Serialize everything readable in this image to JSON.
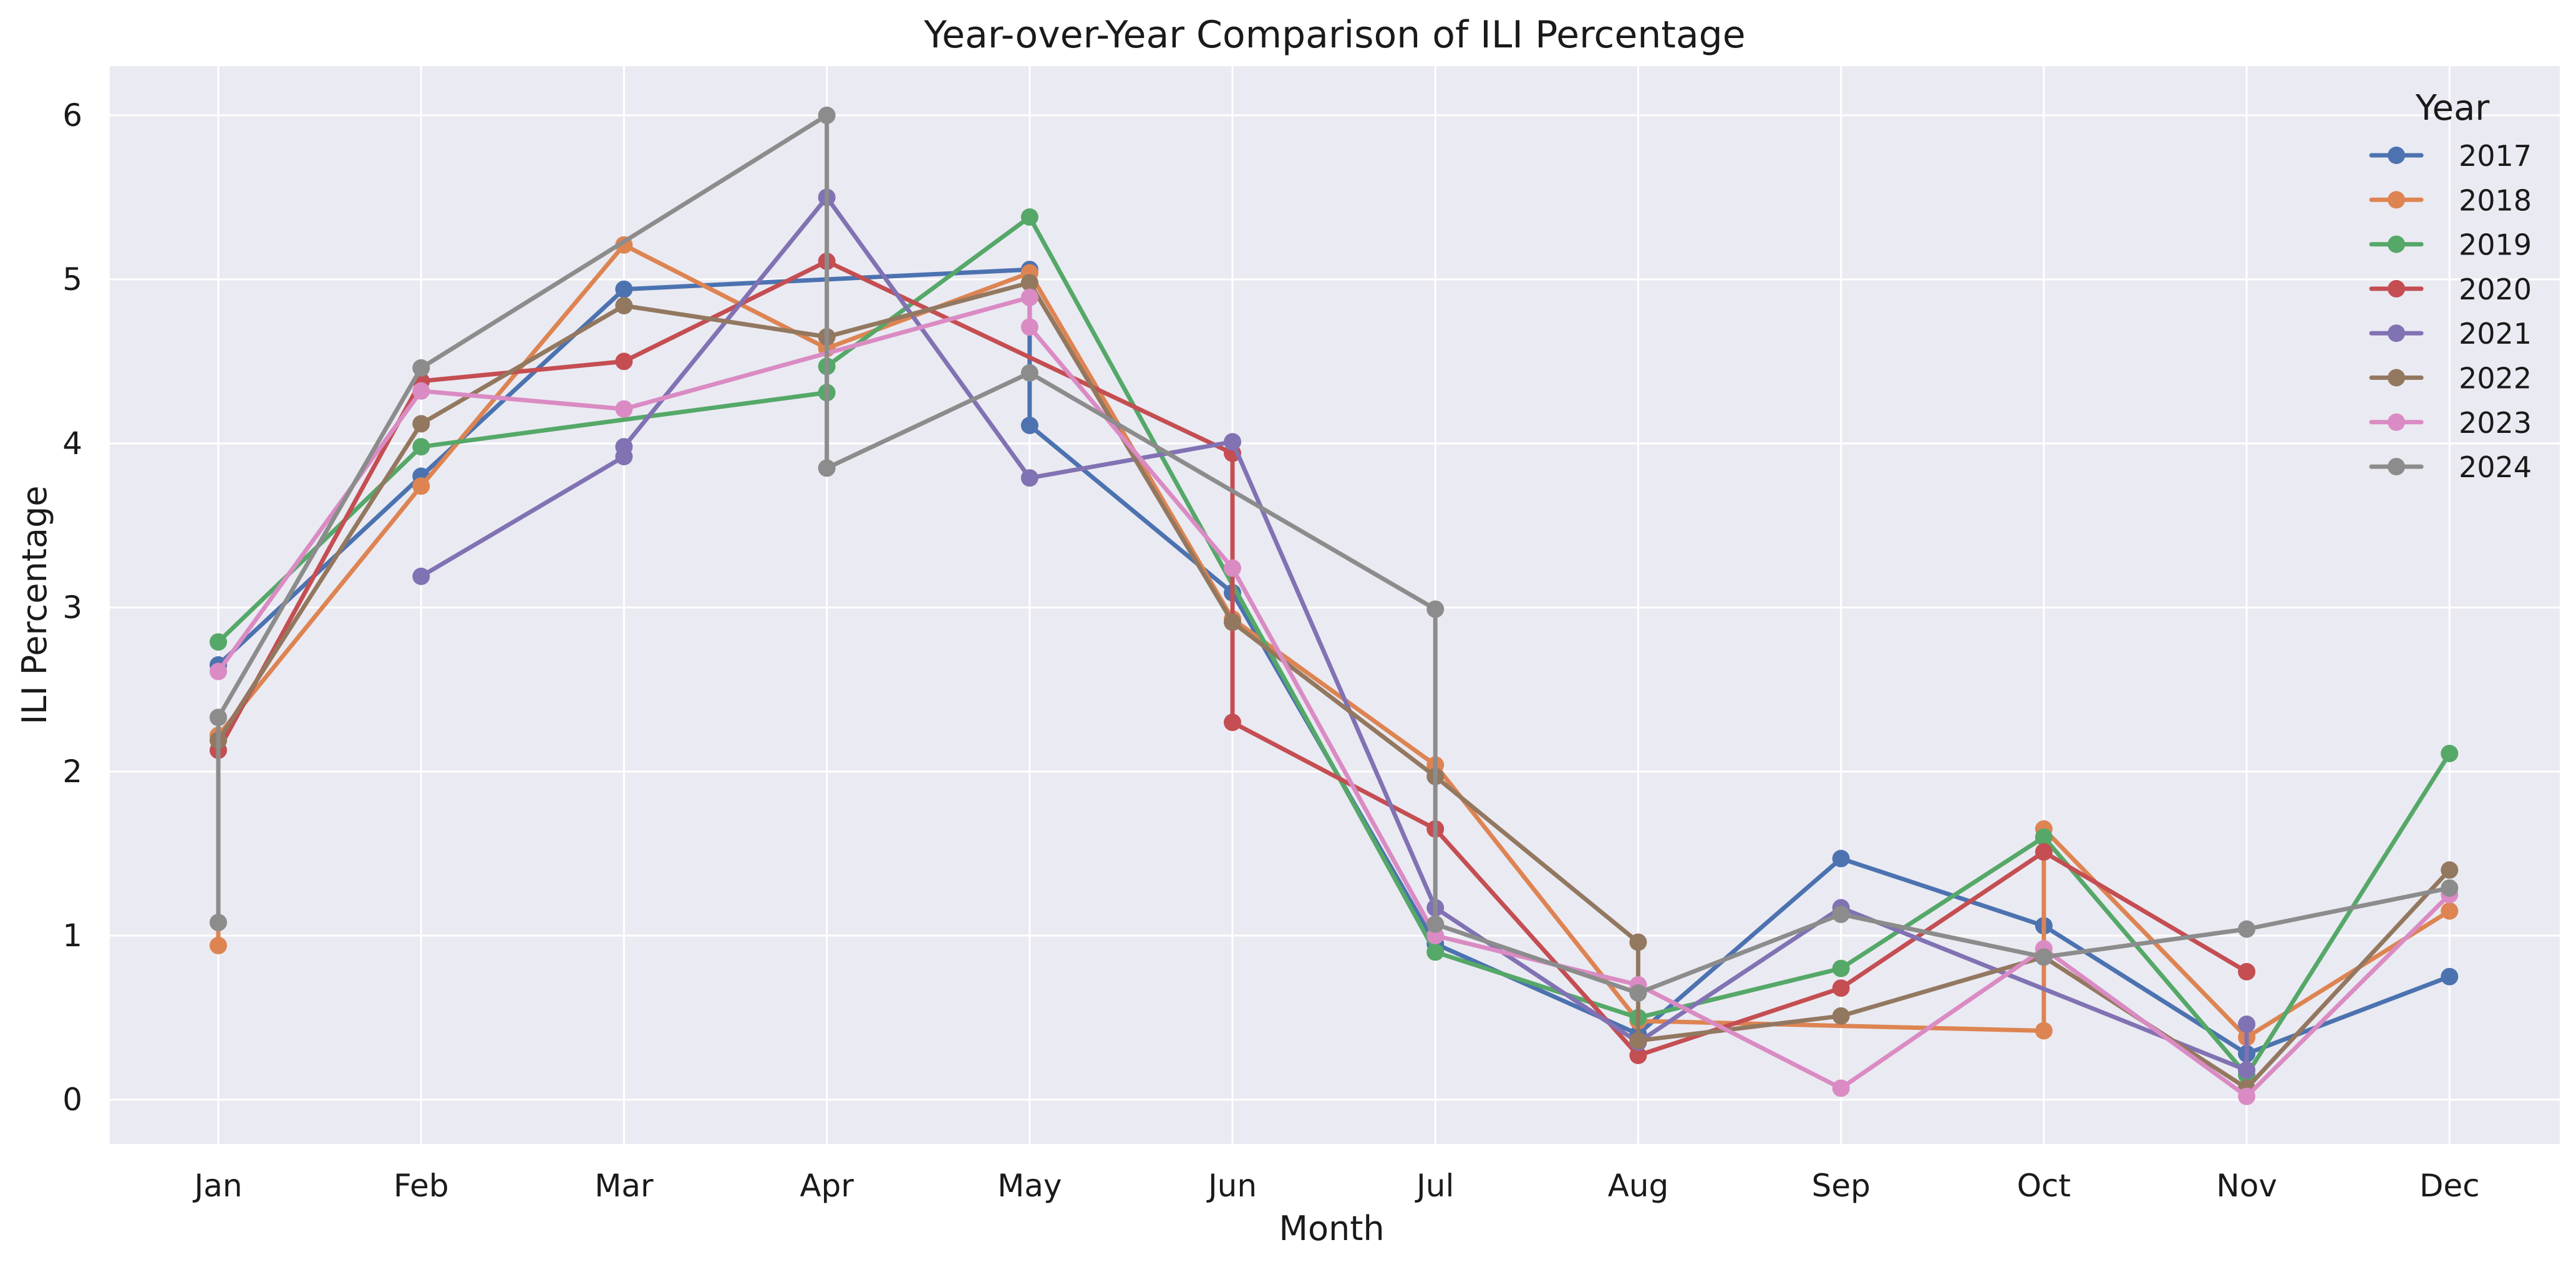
{
  "chart_data": {
    "type": "line",
    "title": "Year-over-Year Comparison of ILI Percentage",
    "xlabel": "Month",
    "ylabel": "ILI Percentage",
    "categories": [
      "Jan",
      "Feb",
      "Mar",
      "Apr",
      "May",
      "Jun",
      "Jul",
      "Aug",
      "Sep",
      "Oct",
      "Nov",
      "Dec"
    ],
    "yticks": [
      "0",
      "1",
      "2",
      "3",
      "4",
      "5",
      "6"
    ],
    "ylim": [
      -0.27,
      6.3
    ],
    "grid": true,
    "legend": {
      "title": "Year",
      "placement": "top-right"
    },
    "series": [
      {
        "name": "2017",
        "color": "#4c72b0",
        "points": [
          [
            0,
            2.65
          ],
          [
            1,
            3.8
          ],
          [
            2,
            4.94
          ],
          [
            4,
            5.06
          ],
          [
            4,
            4.11
          ],
          [
            5,
            3.09
          ],
          [
            6,
            0.95
          ],
          [
            7,
            0.4
          ],
          [
            8,
            1.47
          ],
          [
            9,
            1.06
          ],
          [
            10,
            0.28
          ],
          [
            11,
            0.75
          ]
        ]
      },
      {
        "name": "2018",
        "color": "#dd8452",
        "points": [
          [
            0,
            0.94
          ],
          [
            0,
            2.22
          ],
          [
            1,
            3.74
          ],
          [
            2,
            5.21
          ],
          [
            3,
            4.58
          ],
          [
            4,
            5.04
          ],
          [
            5,
            2.93
          ],
          [
            6,
            2.04
          ],
          [
            7,
            0.48
          ],
          [
            9,
            0.42
          ],
          [
            9,
            1.65
          ],
          [
            10,
            0.38
          ],
          [
            11,
            1.15
          ]
        ]
      },
      {
        "name": "2019",
        "color": "#55a868",
        "points": [
          [
            0,
            2.79
          ],
          [
            1,
            3.98
          ],
          [
            3,
            4.31
          ],
          [
            3,
            4.47
          ],
          [
            4,
            5.38
          ],
          [
            6,
            0.9
          ],
          [
            7,
            0.5
          ],
          [
            8,
            0.8
          ],
          [
            9,
            1.6
          ],
          [
            10,
            0.15
          ],
          [
            11,
            2.11
          ]
        ]
      },
      {
        "name": "2020",
        "color": "#c44e52",
        "points": [
          [
            0,
            2.13
          ],
          [
            1,
            4.38
          ],
          [
            2,
            4.5
          ],
          [
            3,
            5.11
          ],
          [
            5,
            3.94
          ],
          [
            5,
            2.3
          ],
          [
            6,
            1.65
          ],
          [
            7,
            0.27
          ],
          [
            8,
            0.68
          ],
          [
            9,
            1.51
          ],
          [
            10,
            0.78
          ]
        ]
      },
      {
        "name": "2021",
        "color": "#8172b3",
        "points": [
          [
            1,
            3.19
          ],
          [
            2,
            3.92
          ],
          [
            2,
            3.98
          ],
          [
            3,
            5.5
          ],
          [
            4,
            3.79
          ],
          [
            5,
            4.01
          ],
          [
            6,
            1.17
          ],
          [
            7,
            0.35
          ],
          [
            8,
            1.17
          ],
          [
            10,
            0.18
          ],
          [
            10,
            0.46
          ]
        ]
      },
      {
        "name": "2022",
        "color": "#937860",
        "points": [
          [
            0,
            2.19
          ],
          [
            1,
            4.12
          ],
          [
            2,
            4.84
          ],
          [
            3,
            4.65
          ],
          [
            4,
            4.98
          ],
          [
            5,
            2.91
          ],
          [
            6,
            1.97
          ],
          [
            7,
            0.96
          ],
          [
            7,
            0.36
          ],
          [
            8,
            0.51
          ],
          [
            9,
            0.87
          ],
          [
            10,
            0.07
          ],
          [
            11,
            1.4
          ]
        ]
      },
      {
        "name": "2023",
        "color": "#da8bc3",
        "points": [
          [
            0,
            2.61
          ],
          [
            1,
            4.32
          ],
          [
            2,
            4.21
          ],
          [
            4,
            4.89
          ],
          [
            4,
            4.71
          ],
          [
            5,
            3.24
          ],
          [
            6,
            1.0
          ],
          [
            7,
            0.7
          ],
          [
            8,
            0.07
          ],
          [
            9,
            0.92
          ],
          [
            10,
            0.02
          ],
          [
            11,
            1.25
          ]
        ]
      },
      {
        "name": "2024",
        "color": "#8c8c8c",
        "points": [
          [
            0,
            1.08
          ],
          [
            0,
            2.33
          ],
          [
            1,
            4.46
          ],
          [
            3,
            6.0
          ],
          [
            3,
            3.85
          ],
          [
            4,
            4.43
          ],
          [
            6,
            2.99
          ],
          [
            6,
            1.07
          ],
          [
            7,
            0.65
          ],
          [
            8,
            1.13
          ],
          [
            9,
            0.87
          ],
          [
            10,
            1.04
          ],
          [
            11,
            1.29
          ]
        ]
      }
    ]
  }
}
